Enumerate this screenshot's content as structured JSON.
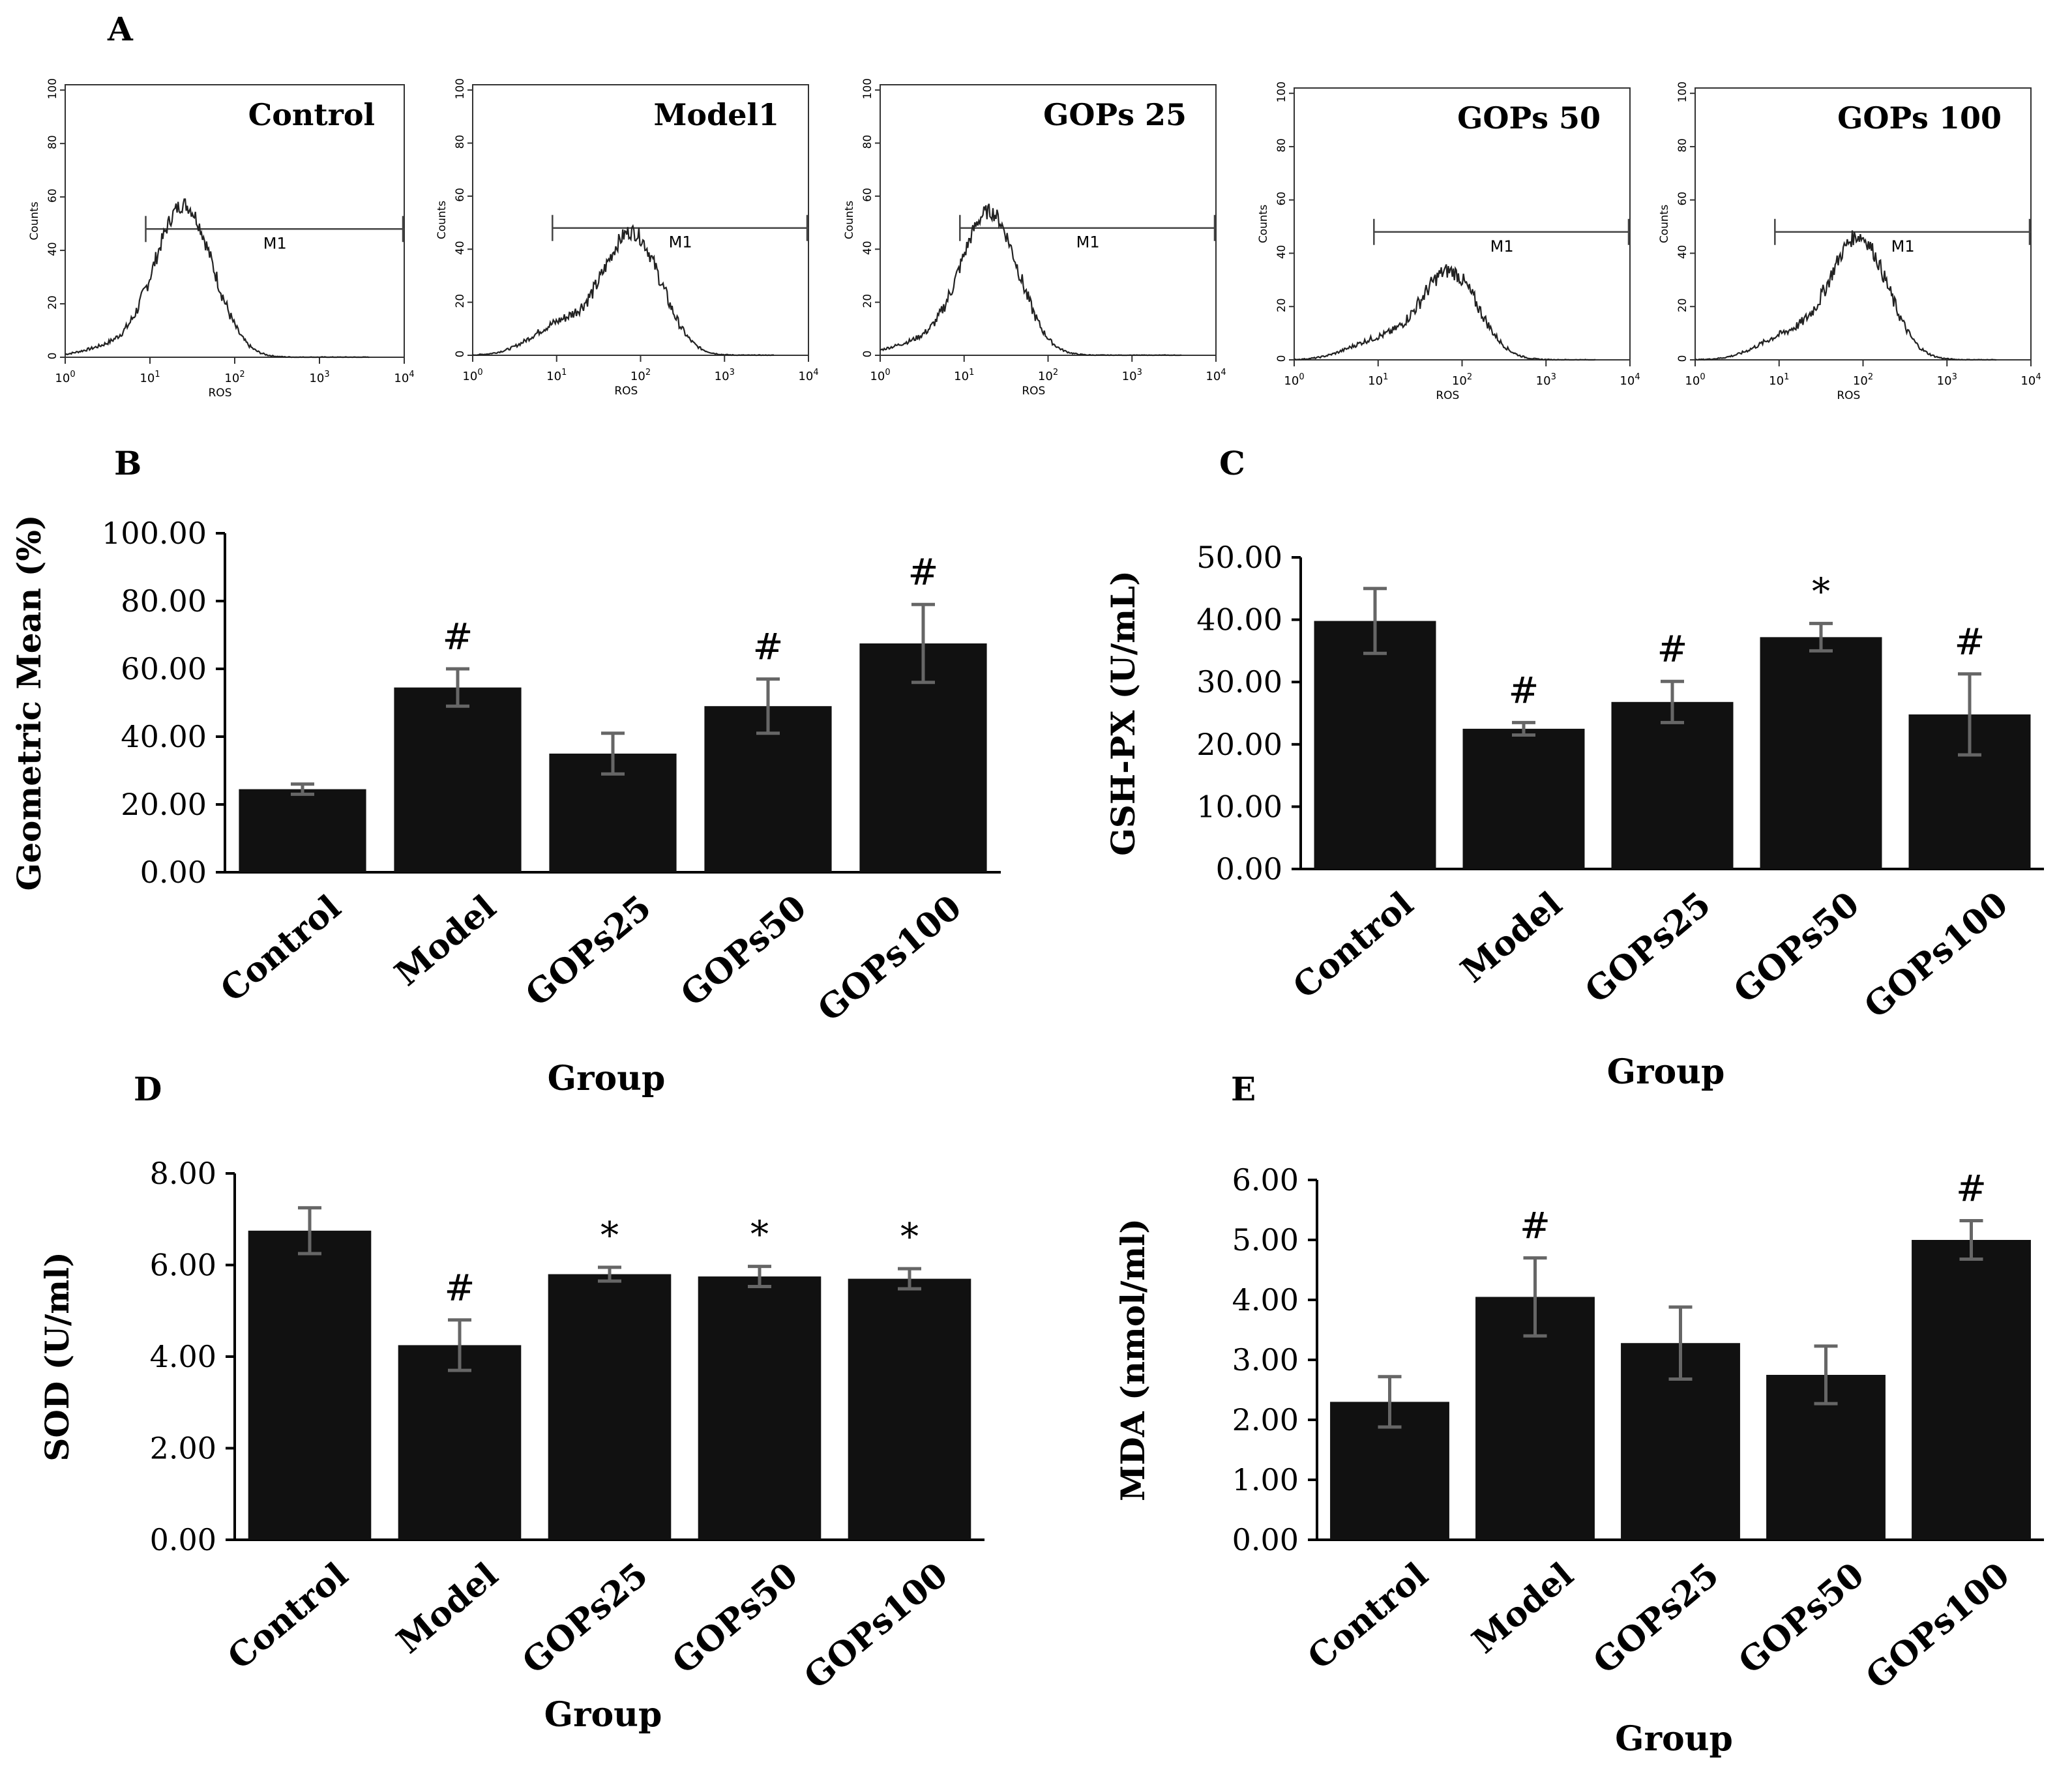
{
  "panel_labels": {
    "A": "A",
    "B": "B",
    "C": "C",
    "D": "D",
    "E": "E"
  },
  "histograms": {
    "y_ticks": [
      "0",
      "20",
      "40",
      "60",
      "80",
      "100"
    ],
    "y_label": "Counts",
    "x_label": "ROS",
    "x_tick_base": "10",
    "x_tick_exps": [
      "0",
      "1",
      "2",
      "3",
      "4"
    ],
    "gate_label": "M1",
    "panels": [
      {
        "title": "Control",
        "peak_exp": 1.4,
        "peak_count": 57,
        "shoulder": 0.12,
        "gate_exp": 0.95
      },
      {
        "title": "Model1",
        "peak_exp": 1.9,
        "peak_count": 46,
        "shoulder": 0.45,
        "gate_exp": 0.95
      },
      {
        "title": "GOPs 25",
        "peak_exp": 1.3,
        "peak_count": 54,
        "shoulder": 0.15,
        "gate_exp": 0.95
      },
      {
        "title": "GOPs 50",
        "peak_exp": 1.85,
        "peak_count": 33,
        "shoulder": 0.4,
        "gate_exp": 0.95
      },
      {
        "title": "GOPs 100",
        "peak_exp": 1.95,
        "peak_count": 46,
        "shoulder": 0.35,
        "gate_exp": 0.95
      }
    ]
  },
  "chart_data": [
    {
      "id": "B",
      "type": "bar",
      "categories": [
        "Control",
        "Model",
        "GOPs25",
        "GOPs50",
        "GOPs100"
      ],
      "values": [
        24.5,
        54.5,
        35.0,
        49.0,
        67.5
      ],
      "errors": [
        1.5,
        5.5,
        6.0,
        8.0,
        11.5
      ],
      "markers": [
        "",
        "#",
        "",
        "#",
        "#"
      ],
      "ylabel": "Geometric Mean (%)",
      "xlabel": "Group",
      "ylim": [
        0,
        100
      ],
      "yticks": [
        "0.00",
        "20.00",
        "40.00",
        "60.00",
        "80.00",
        "100.00"
      ]
    },
    {
      "id": "C",
      "type": "bar",
      "categories": [
        "Control",
        "Model",
        "GOPs25",
        "GOPs50",
        "GOPs100"
      ],
      "values": [
        39.8,
        22.5,
        26.8,
        37.2,
        24.8
      ],
      "errors": [
        5.2,
        1.0,
        3.3,
        2.2,
        6.5
      ],
      "markers": [
        "",
        "#",
        "#",
        "*",
        "#"
      ],
      "ylabel": "GSH-PX (U/mL)",
      "xlabel": "Group",
      "ylim": [
        0,
        50
      ],
      "yticks": [
        "0.00",
        "10.00",
        "20.00",
        "30.00",
        "40.00",
        "50.00"
      ]
    },
    {
      "id": "D",
      "type": "bar",
      "categories": [
        "Control",
        "Model",
        "GOPs25",
        "GOPs50",
        "GOPs100"
      ],
      "values": [
        6.75,
        4.25,
        5.8,
        5.75,
        5.7
      ],
      "errors": [
        0.5,
        0.55,
        0.15,
        0.22,
        0.22
      ],
      "markers": [
        "",
        "#",
        "*",
        "*",
        "*"
      ],
      "ylabel": "SOD (U/ml)",
      "xlabel": "Group",
      "ylim": [
        0,
        8
      ],
      "yticks": [
        "0.00",
        "2.00",
        "4.00",
        "6.00",
        "8.00"
      ]
    },
    {
      "id": "E",
      "type": "bar",
      "categories": [
        "Control",
        "Model",
        "GOPs25",
        "GOPs50",
        "GOPs100"
      ],
      "values": [
        2.3,
        4.05,
        3.28,
        2.75,
        5.0
      ],
      "errors": [
        0.42,
        0.65,
        0.6,
        0.48,
        0.32
      ],
      "markers": [
        "",
        "#",
        "",
        "",
        "#"
      ],
      "ylabel": "MDA (nmol/ml)",
      "xlabel": "Group",
      "ylim": [
        0,
        6
      ],
      "yticks": [
        "0.00",
        "1.00",
        "2.00",
        "3.00",
        "4.00",
        "5.00",
        "6.00"
      ]
    }
  ]
}
